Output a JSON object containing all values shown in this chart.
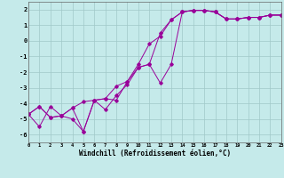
{
  "xlabel": "Windchill (Refroidissement éolien,°C)",
  "bg_color": "#c5eaea",
  "line_color": "#990099",
  "grid_color": "#a0c8c8",
  "xlim": [
    0,
    23
  ],
  "ylim": [
    -6.5,
    2.5
  ],
  "yticks": [
    -6,
    -5,
    -4,
    -3,
    -2,
    -1,
    0,
    1,
    2
  ],
  "xticks": [
    0,
    1,
    2,
    3,
    4,
    5,
    6,
    7,
    8,
    9,
    10,
    11,
    12,
    13,
    14,
    15,
    16,
    17,
    18,
    19,
    20,
    21,
    22,
    23
  ],
  "line1_x": [
    0,
    1,
    2,
    3,
    4,
    5,
    6,
    7,
    8,
    9,
    10,
    11,
    12,
    13,
    14,
    15,
    16,
    17,
    18,
    19,
    20,
    21,
    22,
    23
  ],
  "line1_y": [
    -4.7,
    -5.5,
    -4.2,
    -4.8,
    -5.0,
    -5.8,
    -3.8,
    -3.7,
    -3.8,
    -2.6,
    -1.5,
    -0.2,
    0.3,
    1.35,
    1.85,
    1.95,
    1.95,
    1.85,
    1.4,
    1.4,
    1.5,
    1.5,
    1.65,
    1.65
  ],
  "line2_x": [
    0,
    1,
    2,
    3,
    4,
    5,
    6,
    7,
    8,
    9,
    10,
    11,
    12,
    13,
    14,
    15,
    16,
    17,
    18,
    19,
    20,
    21,
    22,
    23
  ],
  "line2_y": [
    -4.7,
    -4.2,
    -4.9,
    -4.8,
    -4.3,
    -5.8,
    -3.8,
    -4.4,
    -3.5,
    -2.8,
    -1.7,
    -1.5,
    0.5,
    1.35,
    1.85,
    1.95,
    1.95,
    1.85,
    1.4,
    1.4,
    1.5,
    1.5,
    1.65,
    1.65
  ],
  "line3_x": [
    0,
    1,
    2,
    3,
    4,
    5,
    6,
    7,
    8,
    9,
    10,
    11,
    12,
    13,
    14,
    15,
    16,
    17,
    18,
    19,
    20,
    21,
    22,
    23
  ],
  "line3_y": [
    -4.7,
    -4.2,
    -4.9,
    -4.8,
    -4.3,
    -3.9,
    -3.8,
    -3.7,
    -2.9,
    -2.6,
    -1.7,
    -1.5,
    -2.7,
    -1.5,
    1.85,
    1.95,
    1.95,
    1.85,
    1.4,
    1.4,
    1.5,
    1.5,
    1.65,
    1.65
  ]
}
